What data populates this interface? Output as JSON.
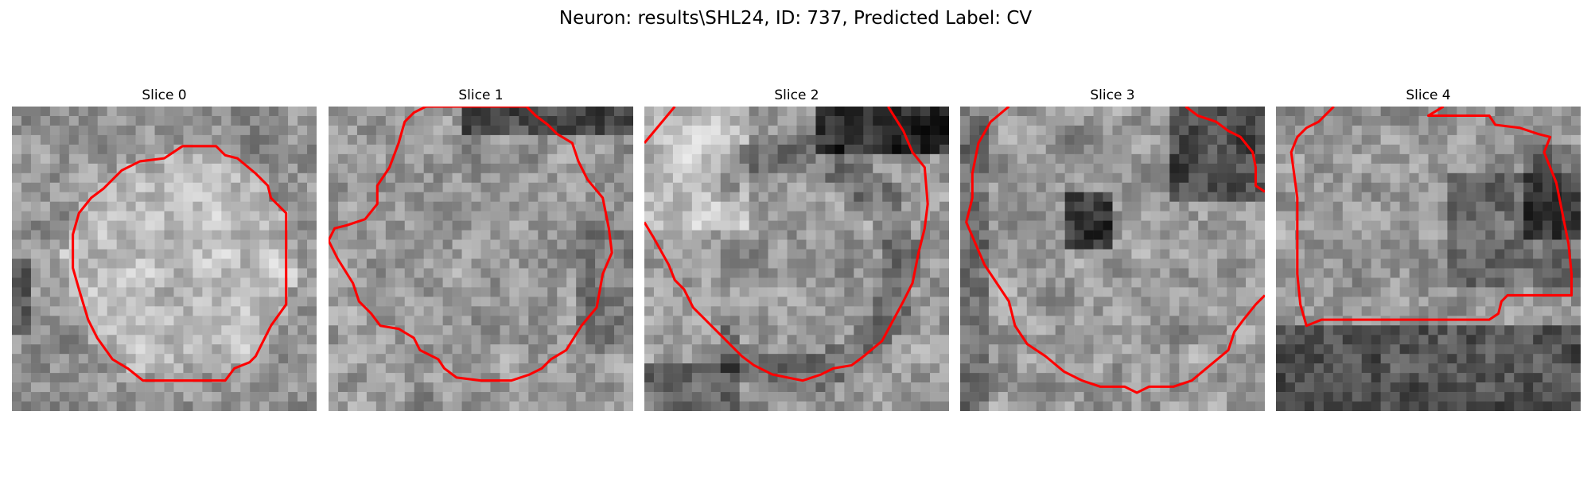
{
  "figure": {
    "title": "Neuron: results\\SHL24, ID: 737, Predicted Label: CV",
    "contour_color": "#ff0000",
    "panels": [
      {
        "title": "Slice 0",
        "seed": 11,
        "contour": [
          [
            0.56,
            0.13
          ],
          [
            0.67,
            0.13
          ],
          [
            0.7,
            0.16
          ],
          [
            0.74,
            0.17
          ],
          [
            0.8,
            0.22
          ],
          [
            0.84,
            0.26
          ],
          [
            0.85,
            0.3
          ],
          [
            0.9,
            0.35
          ],
          [
            0.9,
            0.45
          ],
          [
            0.9,
            0.53
          ],
          [
            0.9,
            0.65
          ],
          [
            0.85,
            0.72
          ],
          [
            0.82,
            0.78
          ],
          [
            0.8,
            0.82
          ],
          [
            0.78,
            0.84
          ],
          [
            0.73,
            0.86
          ],
          [
            0.7,
            0.9
          ],
          [
            0.6,
            0.9
          ],
          [
            0.5,
            0.9
          ],
          [
            0.43,
            0.9
          ],
          [
            0.38,
            0.86
          ],
          [
            0.33,
            0.83
          ],
          [
            0.28,
            0.76
          ],
          [
            0.25,
            0.7
          ],
          [
            0.22,
            0.6
          ],
          [
            0.2,
            0.53
          ],
          [
            0.2,
            0.42
          ],
          [
            0.22,
            0.35
          ],
          [
            0.26,
            0.3
          ],
          [
            0.3,
            0.27
          ],
          [
            0.36,
            0.21
          ],
          [
            0.42,
            0.18
          ],
          [
            0.5,
            0.17
          ],
          [
            0.53,
            0.15
          ]
        ]
      },
      {
        "title": "Slice 1",
        "seed": 23,
        "contour": [
          [
            0.32,
            0.0
          ],
          [
            0.28,
            0.02
          ],
          [
            0.25,
            0.05
          ],
          [
            0.23,
            0.12
          ],
          [
            0.2,
            0.2
          ],
          [
            0.16,
            0.26
          ],
          [
            0.16,
            0.32
          ],
          [
            0.12,
            0.37
          ],
          [
            0.06,
            0.39
          ],
          [
            0.02,
            0.4
          ],
          [
            0.0,
            0.44
          ],
          [
            0.03,
            0.5
          ],
          [
            0.08,
            0.58
          ],
          [
            0.1,
            0.64
          ],
          [
            0.14,
            0.68
          ],
          [
            0.17,
            0.72
          ],
          [
            0.23,
            0.73
          ],
          [
            0.28,
            0.76
          ],
          [
            0.3,
            0.8
          ],
          [
            0.36,
            0.83
          ],
          [
            0.38,
            0.86
          ],
          [
            0.42,
            0.89
          ],
          [
            0.5,
            0.9
          ],
          [
            0.6,
            0.9
          ],
          [
            0.66,
            0.88
          ],
          [
            0.7,
            0.86
          ],
          [
            0.73,
            0.83
          ],
          [
            0.78,
            0.8
          ],
          [
            0.83,
            0.72
          ],
          [
            0.88,
            0.66
          ],
          [
            0.9,
            0.55
          ],
          [
            0.93,
            0.48
          ],
          [
            0.92,
            0.4
          ],
          [
            0.9,
            0.3
          ],
          [
            0.85,
            0.24
          ],
          [
            0.82,
            0.18
          ],
          [
            0.8,
            0.12
          ],
          [
            0.75,
            0.09
          ],
          [
            0.72,
            0.06
          ],
          [
            0.68,
            0.03
          ],
          [
            0.65,
            0.0
          ]
        ]
      },
      {
        "title": "Slice 2",
        "seed": 37,
        "contour": [
          [
            [
              0.0,
              0.12
            ],
            [
              0.05,
              0.06
            ],
            [
              0.1,
              0.0
            ]
          ],
          [
            [
              0.0,
              0.38
            ],
            [
              0.03,
              0.43
            ],
            [
              0.08,
              0.52
            ],
            [
              0.1,
              0.57
            ],
            [
              0.13,
              0.6
            ],
            [
              0.16,
              0.66
            ],
            [
              0.2,
              0.7
            ],
            [
              0.26,
              0.76
            ],
            [
              0.32,
              0.82
            ],
            [
              0.36,
              0.85
            ],
            [
              0.42,
              0.88
            ],
            [
              0.52,
              0.9
            ],
            [
              0.58,
              0.88
            ],
            [
              0.62,
              0.86
            ],
            [
              0.68,
              0.85
            ],
            [
              0.72,
              0.82
            ],
            [
              0.78,
              0.77
            ],
            [
              0.85,
              0.64
            ],
            [
              0.88,
              0.58
            ],
            [
              0.9,
              0.48
            ],
            [
              0.92,
              0.4
            ],
            [
              0.93,
              0.32
            ],
            [
              0.92,
              0.2
            ],
            [
              0.88,
              0.15
            ],
            [
              0.85,
              0.08
            ],
            [
              0.8,
              0.0
            ]
          ]
        ]
      },
      {
        "title": "Slice 3",
        "seed": 41,
        "contour": [
          [
            [
              0.16,
              0.0
            ],
            [
              0.1,
              0.05
            ],
            [
              0.06,
              0.12
            ],
            [
              0.04,
              0.22
            ],
            [
              0.04,
              0.3
            ],
            [
              0.02,
              0.38
            ],
            [
              0.05,
              0.45
            ],
            [
              0.08,
              0.52
            ],
            [
              0.12,
              0.58
            ],
            [
              0.16,
              0.64
            ],
            [
              0.18,
              0.72
            ],
            [
              0.22,
              0.78
            ],
            [
              0.28,
              0.82
            ],
            [
              0.34,
              0.87
            ],
            [
              0.4,
              0.9
            ],
            [
              0.46,
              0.92
            ],
            [
              0.54,
              0.92
            ],
            [
              0.58,
              0.94
            ],
            [
              0.62,
              0.92
            ],
            [
              0.7,
              0.92
            ],
            [
              0.76,
              0.9
            ],
            [
              0.82,
              0.85
            ],
            [
              0.88,
              0.8
            ],
            [
              0.9,
              0.74
            ],
            [
              0.93,
              0.7
            ],
            [
              0.97,
              0.65
            ],
            [
              1.0,
              0.62
            ]
          ],
          [
            [
              0.74,
              0.0
            ],
            [
              0.78,
              0.03
            ],
            [
              0.84,
              0.05
            ],
            [
              0.88,
              0.08
            ],
            [
              0.92,
              0.1
            ],
            [
              0.96,
              0.15
            ],
            [
              0.97,
              0.2
            ],
            [
              0.97,
              0.26
            ],
            [
              1.0,
              0.28
            ]
          ]
        ]
      },
      {
        "title": "Slice 4",
        "seed": 53,
        "contour": [
          [
            [
              0.19,
              0.0
            ],
            [
              0.14,
              0.05
            ],
            [
              0.1,
              0.07
            ],
            [
              0.07,
              0.1
            ],
            [
              0.05,
              0.15
            ],
            [
              0.07,
              0.3
            ],
            [
              0.07,
              0.55
            ],
            [
              0.08,
              0.65
            ],
            [
              0.1,
              0.72
            ],
            [
              0.15,
              0.7
            ],
            [
              0.25,
              0.7
            ],
            [
              0.4,
              0.7
            ],
            [
              0.55,
              0.7
            ],
            [
              0.7,
              0.7
            ],
            [
              0.73,
              0.68
            ],
            [
              0.74,
              0.64
            ],
            [
              0.76,
              0.62
            ],
            [
              0.85,
              0.62
            ],
            [
              0.93,
              0.62
            ],
            [
              0.97,
              0.62
            ],
            [
              0.97,
              0.55
            ],
            [
              0.96,
              0.45
            ],
            [
              0.94,
              0.35
            ],
            [
              0.92,
              0.25
            ],
            [
              0.9,
              0.2
            ],
            [
              0.88,
              0.15
            ],
            [
              0.9,
              0.1
            ],
            [
              0.86,
              0.09
            ],
            [
              0.8,
              0.07
            ],
            [
              0.72,
              0.06
            ],
            [
              0.7,
              0.03
            ],
            [
              0.63,
              0.03
            ],
            [
              0.55,
              0.03
            ],
            [
              0.5,
              0.03
            ],
            [
              0.55,
              0.0
            ]
          ]
        ]
      }
    ]
  }
}
